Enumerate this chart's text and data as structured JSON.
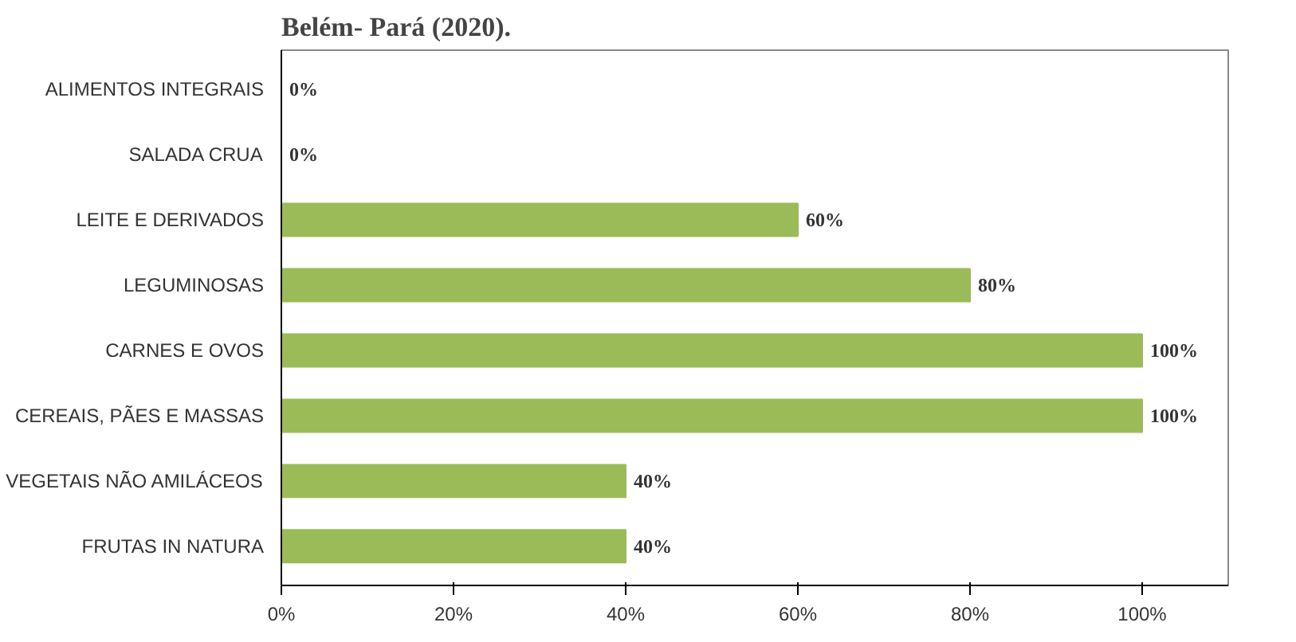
{
  "chart_data": {
    "type": "bar",
    "orientation": "horizontal",
    "title": "Belém- Pará (2020).",
    "categories": [
      "ALIMENTOS INTEGRAIS",
      "SALADA CRUA",
      "LEITE E DERIVADOS",
      "LEGUMINOSAS",
      "CARNES E OVOS",
      "CEREAIS, PÃES E MASSAS",
      "VEGETAIS NÃO AMILÁCEOS",
      "FRUTAS IN NATURA"
    ],
    "values": [
      0,
      0,
      60,
      80,
      100,
      100,
      40,
      40
    ],
    "value_labels": [
      "0%",
      "0%",
      "60%",
      "80%",
      "100%",
      "100%",
      "40%",
      "40%"
    ],
    "color": "#9bbb59",
    "xlim": [
      0,
      110
    ],
    "xticks": [
      {
        "value": 0,
        "label": "0%"
      },
      {
        "value": 20,
        "label": "20%"
      },
      {
        "value": 40,
        "label": "40%"
      },
      {
        "value": 60,
        "label": "60%"
      },
      {
        "value": 80,
        "label": "80%"
      },
      {
        "value": 100,
        "label": "100%"
      }
    ],
    "grid": false
  }
}
